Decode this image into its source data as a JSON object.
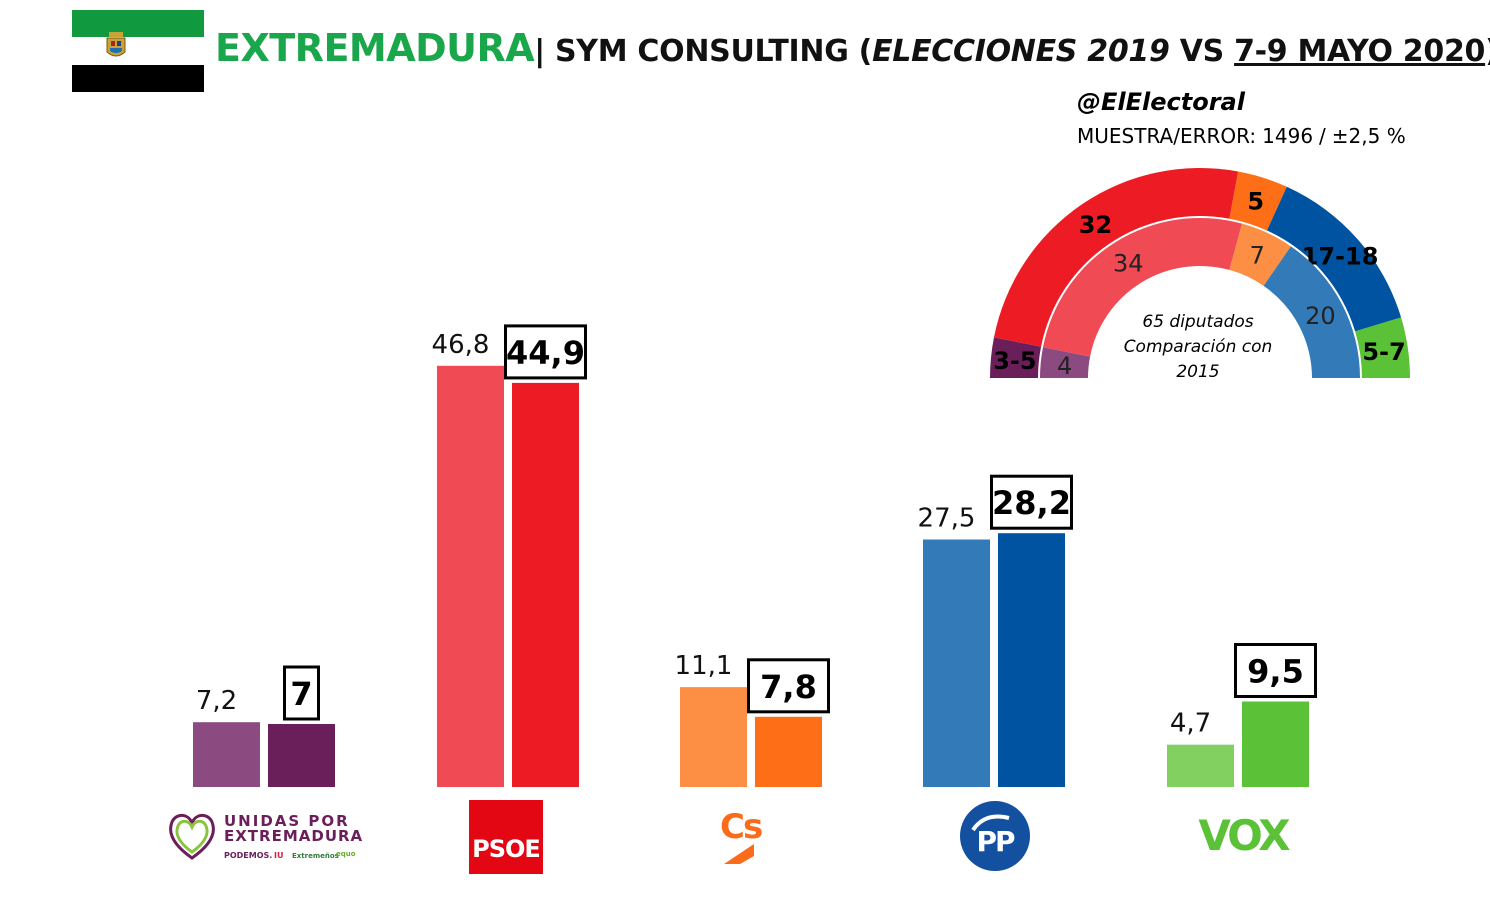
{
  "header": {
    "region": "EXTREMADURA",
    "pollster": "| SYM CONSULTING (",
    "elections": "ELECCIONES 2019",
    "vs": " VS ",
    "dates": "7-9 MAYO 2020",
    "close": ")"
  },
  "source": {
    "handle": "@ElElectoral"
  },
  "sample": {
    "label": "MUESTRA/ERROR:",
    "size": "1496",
    "sep": "/",
    "error": "±2,5 %"
  },
  "hemicycle": {
    "caption_line1": "65 diputados",
    "caption_line2": "Comparación con",
    "caption_line3": "2015",
    "outer_label": "Encuesta",
    "inner_label": "2015"
  },
  "logos": {
    "unidas_line1": "UNIDAS POR",
    "unidas_line2": "EXTREMADURA",
    "unidas_sub1": "PODEMOS.",
    "unidas_sub2": "IU",
    "unidas_sub3": "Extremeños",
    "unidas_sub4": "equo",
    "psoe": "PSOE",
    "cs": "Cs",
    "pp": "PP",
    "vox": "VOX"
  },
  "colors": {
    "unidas_2019": "#8b4a80",
    "unidas_poll": "#6a1f5a",
    "psoe_2019": "#f04a55",
    "psoe_poll": "#ed1c24",
    "cs_2019": "#fd8f45",
    "cs_poll": "#fd6e16",
    "pp_2019": "#337ab8",
    "pp_poll": "#0053a1",
    "vox_2019": "#82d060",
    "vox_poll": "#5bc136",
    "flag_green": "#119940"
  },
  "chart_data": [
    {
      "type": "bar",
      "categories": [
        "UNIDAS POR EXTREMADURA",
        "PSOE",
        "Cs",
        "PP",
        "VOX"
      ],
      "series": [
        {
          "values": [
            7.2,
            46.8,
            11.1,
            27.5,
            4.7
          ]
        },
        {
          "values": [
            7,
            44.9,
            7.8,
            28.2,
            9.5
          ]
        }
      ],
      "value_labels": [
        [
          "7,2",
          "46,8",
          "11,1",
          "27,5",
          "4,7"
        ],
        [
          "7",
          "44,9",
          "7,8",
          "28,2",
          "9,5"
        ]
      ],
      "ylim": [
        0,
        50
      ],
      "grid": false,
      "legend": "none"
    },
    {
      "type": "pie",
      "subtype": "hemicycle",
      "total_seats": 65,
      "parties": [
        "UNIDAS POR EXTREMADURA",
        "PSOE",
        "Cs",
        "PP",
        "VOX"
      ],
      "rings": [
        {
          "name": "outer",
          "values": [
            4,
            32,
            5,
            17.5,
            6
          ],
          "labels": [
            "3-5",
            "32",
            "5",
            "17-18",
            "5-7"
          ]
        },
        {
          "name": "inner",
          "values": [
            4,
            34,
            7,
            20,
            0
          ],
          "labels": [
            "4",
            "34",
            "7",
            "20",
            ""
          ]
        }
      ]
    }
  ]
}
